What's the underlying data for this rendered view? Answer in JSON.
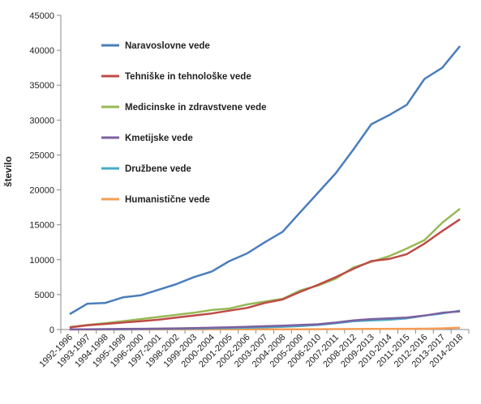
{
  "chart_data": {
    "type": "line",
    "title": "",
    "xlabel": "",
    "ylabel": "število",
    "ylim": [
      0,
      45000
    ],
    "yticks": [
      0,
      5000,
      10000,
      15000,
      20000,
      25000,
      30000,
      35000,
      40000,
      45000
    ],
    "grid": false,
    "legend_position": "top-left",
    "categories": [
      "1992-1996",
      "1993-1997",
      "1994-1998",
      "1995-1999",
      "1996-2000",
      "1997-2001",
      "1998-2002",
      "1999-2003",
      "2000-2004",
      "2001-2005",
      "2002-2006",
      "2003-2007",
      "2004-2008",
      "2005-2009",
      "2006-2010",
      "2007-2011",
      "2008-2012",
      "2009-2013",
      "2010-2014",
      "2011-2015",
      "2012-2016",
      "2013-2017",
      "2014-2018"
    ],
    "series": [
      {
        "name": "Naravoslovne vede",
        "color": "#4A7EBB",
        "values": [
          2200,
          3700,
          3800,
          4600,
          4900,
          5700,
          6500,
          7500,
          8300,
          9800,
          10900,
          12500,
          14000,
          16800,
          19600,
          22400,
          25800,
          29400,
          30700,
          32200,
          35900,
          37500,
          40600
        ]
      },
      {
        "name": "Tehniške in tehnološke vede",
        "color": "#BE4B48",
        "values": [
          300,
          600,
          800,
          1000,
          1200,
          1400,
          1700,
          2000,
          2300,
          2700,
          3100,
          3800,
          4300,
          5400,
          6400,
          7500,
          8700,
          9800,
          10100,
          10800,
          12300,
          14100,
          15800
        ]
      },
      {
        "name": "Medicinske in zdravstvene vede",
        "color": "#98B954",
        "values": [
          350,
          650,
          900,
          1200,
          1500,
          1800,
          2100,
          2400,
          2800,
          3000,
          3600,
          4000,
          4400,
          5600,
          6300,
          7300,
          8900,
          9700,
          10500,
          11600,
          12800,
          15300,
          17300
        ]
      },
      {
        "name": "Kmetijske vede",
        "color": "#7D60A0",
        "values": [
          20,
          40,
          60,
          80,
          100,
          130,
          160,
          200,
          250,
          320,
          400,
          480,
          560,
          650,
          750,
          1000,
          1300,
          1500,
          1600,
          1700,
          2000,
          2400,
          2600
        ]
      },
      {
        "name": "Družbene vede",
        "color": "#46AAC5",
        "values": [
          10,
          20,
          30,
          40,
          60,
          80,
          100,
          130,
          170,
          220,
          270,
          330,
          400,
          500,
          650,
          900,
          1200,
          1300,
          1400,
          1600,
          2000,
          2300,
          2700
        ]
      },
      {
        "name": "Humanistične vede",
        "color": "#F59D56",
        "values": [
          0,
          0,
          5,
          5,
          10,
          10,
          15,
          15,
          20,
          20,
          25,
          30,
          35,
          40,
          50,
          60,
          70,
          80,
          90,
          100,
          120,
          160,
          250
        ]
      }
    ]
  }
}
